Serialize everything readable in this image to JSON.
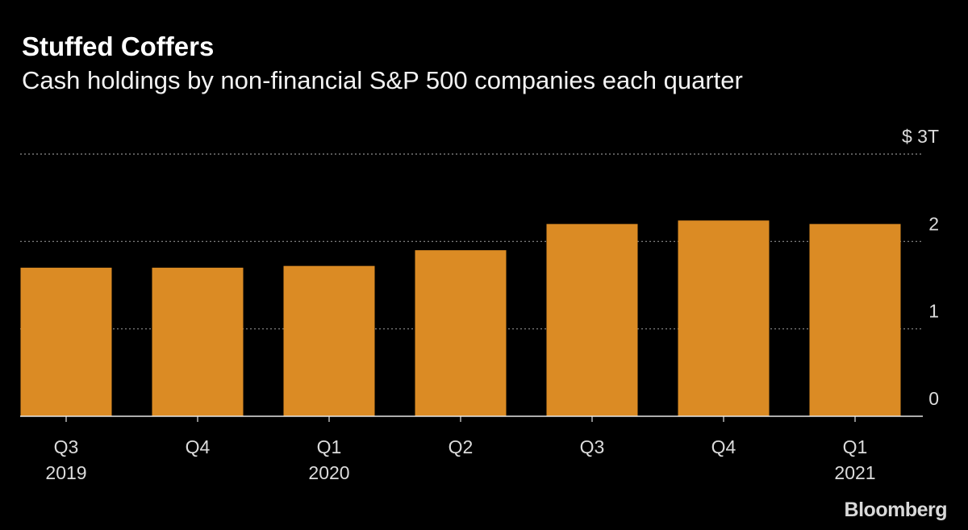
{
  "header": {
    "title": "Stuffed Coffers",
    "subtitle": "Cash holdings by non-financial S&P 500 companies each quarter"
  },
  "brand": {
    "logo_text": "Bloomberg"
  },
  "colors": {
    "background": "#000000",
    "bar": "#db8b24",
    "text": "#ffffff",
    "grid": "#8c8c8c"
  },
  "chart_data": {
    "type": "bar",
    "title": "Stuffed Coffers",
    "subtitle": "Cash holdings by non-financial S&P 500 companies each quarter",
    "categories": [
      {
        "quarter": "Q3",
        "year": "2019"
      },
      {
        "quarter": "Q4",
        "year": ""
      },
      {
        "quarter": "Q1",
        "year": "2020"
      },
      {
        "quarter": "Q2",
        "year": ""
      },
      {
        "quarter": "Q3",
        "year": ""
      },
      {
        "quarter": "Q4",
        "year": ""
      },
      {
        "quarter": "Q1",
        "year": "2021"
      }
    ],
    "values": [
      1.7,
      1.7,
      1.72,
      1.9,
      2.2,
      2.24,
      2.2
    ],
    "unit": "trillion USD",
    "ylim": [
      0,
      3
    ],
    "yticks": [
      {
        "value": 0,
        "label": "0"
      },
      {
        "value": 1,
        "label": "1"
      },
      {
        "value": 2,
        "label": "2"
      },
      {
        "value": 3,
        "label": "$ 3T"
      }
    ],
    "grid": true,
    "legend": "none",
    "xlabel": "",
    "ylabel": ""
  }
}
